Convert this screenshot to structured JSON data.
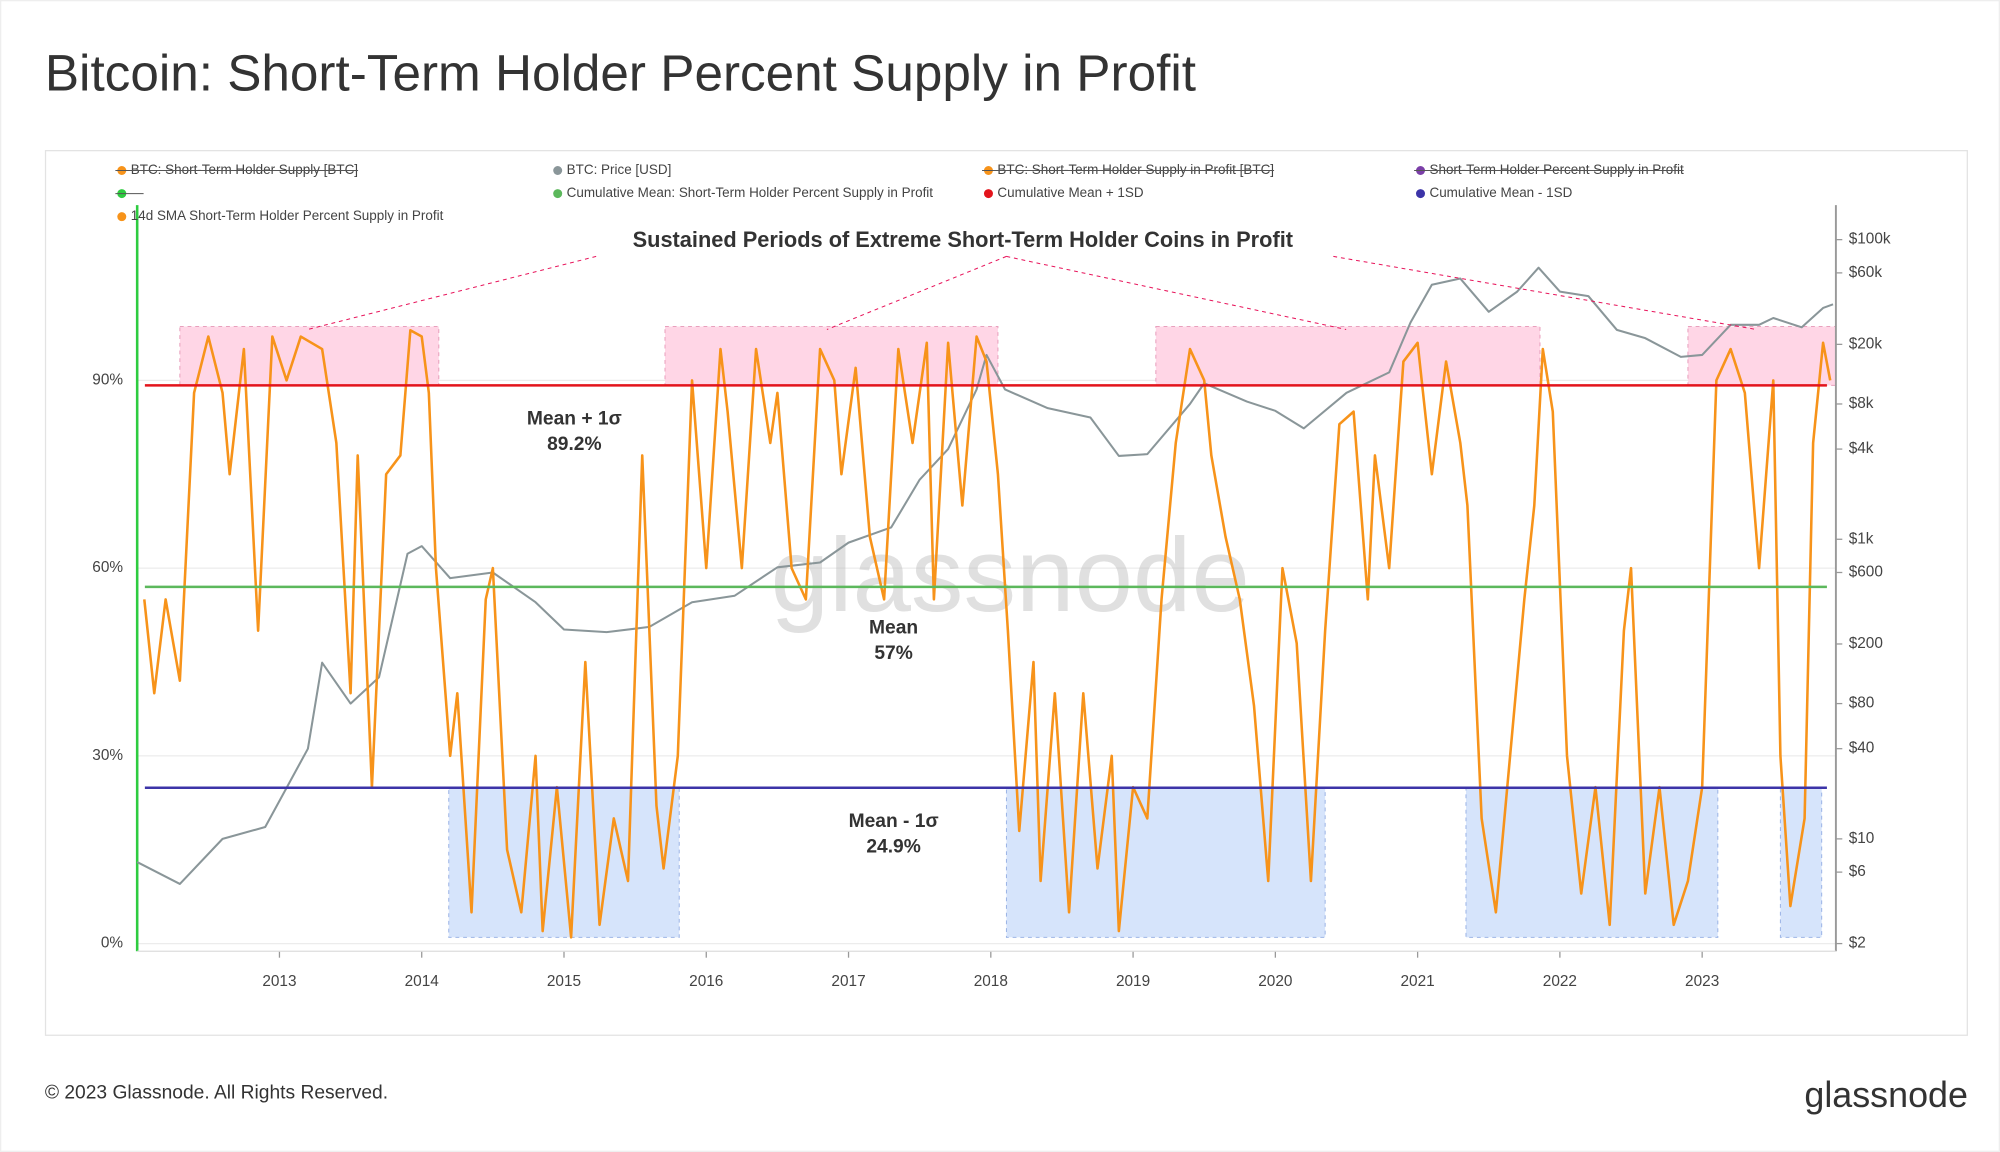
{
  "title": "Bitcoin: Short-Term Holder Percent Supply in Profit",
  "footer": "© 2023 Glassnode. All Rights Reserved.",
  "logo": "glassnode",
  "chart_data": {
    "type": "line",
    "watermark": "glassnode",
    "annotation": "Sustained Periods of Extreme Short-Term Holder Coins in Profit",
    "xlim": [
      2012.0,
      2023.94
    ],
    "xticks": [
      2013,
      2014,
      2015,
      2016,
      2017,
      2018,
      2019,
      2020,
      2021,
      2022,
      2023
    ],
    "ylim": [
      0,
      118
    ],
    "yticks": [
      {
        "value": 0,
        "label": "0%"
      },
      {
        "value": 30,
        "label": "30%"
      },
      {
        "value": 60,
        "label": "60%"
      },
      {
        "value": 90,
        "label": "90%"
      }
    ],
    "y2lim": [
      2,
      170000
    ],
    "y2scale": "log",
    "y2ticks": [
      {
        "value": 100000,
        "label": "$100k"
      },
      {
        "value": 60000,
        "label": "$60k"
      },
      {
        "value": 20000,
        "label": "$20k"
      },
      {
        "value": 8000,
        "label": "$8k"
      },
      {
        "value": 4000,
        "label": "$4k"
      },
      {
        "value": 1000,
        "label": "$1k"
      },
      {
        "value": 600,
        "label": "$600"
      },
      {
        "value": 200,
        "label": "$200"
      },
      {
        "value": 80,
        "label": "$80"
      },
      {
        "value": 40,
        "label": "$40"
      },
      {
        "value": 10,
        "label": "$10"
      },
      {
        "value": 6,
        "label": "$6"
      },
      {
        "value": 2,
        "label": "$2"
      }
    ],
    "grid": true,
    "hidden_series": [
      {
        "name": "BTC: Short-Term Holder Supply [BTC]",
        "color": "#f7931a"
      },
      {
        "name": "BTC: Short-Term Holder Supply in Profit [BTC]",
        "color": "#f7931a"
      },
      {
        "name": "Short-Term Holder Percent Supply in Profit",
        "color": "#7b3fa8"
      }
    ],
    "series": [
      {
        "name": "BTC: Price [USD]",
        "color": "#8a9699",
        "axis": "y2",
        "x": [
          2012.0,
          2012.3,
          2012.6,
          2012.9,
          2013.2,
          2013.3,
          2013.5,
          2013.7,
          2013.9,
          2014.0,
          2014.2,
          2014.5,
          2014.8,
          2015.0,
          2015.3,
          2015.6,
          2015.9,
          2016.2,
          2016.5,
          2016.8,
          2017.0,
          2017.3,
          2017.5,
          2017.7,
          2017.9,
          2017.97,
          2018.1,
          2018.4,
          2018.7,
          2018.9,
          2019.1,
          2019.4,
          2019.5,
          2019.8,
          2020.0,
          2020.2,
          2020.5,
          2020.8,
          2020.95,
          2021.1,
          2021.3,
          2021.5,
          2021.7,
          2021.85,
          2022.0,
          2022.2,
          2022.4,
          2022.6,
          2022.85,
          2023.0,
          2023.2,
          2023.4,
          2023.5,
          2023.7,
          2023.85,
          2023.92
        ],
        "values": [
          7,
          5,
          10,
          12,
          40,
          150,
          80,
          120,
          800,
          900,
          550,
          600,
          380,
          250,
          240,
          260,
          380,
          420,
          650,
          700,
          950,
          1200,
          2500,
          4000,
          10000,
          17000,
          10000,
          7500,
          6500,
          3600,
          3700,
          8000,
          11000,
          8300,
          7200,
          5500,
          9500,
          13000,
          28000,
          50000,
          55000,
          33000,
          45000,
          65000,
          45000,
          42000,
          25000,
          22000,
          16500,
          17000,
          27000,
          27000,
          30000,
          26000,
          35000,
          37000
        ]
      },
      {
        "name": "14d SMA Short-Term Holder Percent Supply in Profit",
        "color": "#f7931a",
        "axis": "y",
        "x": [
          2012.05,
          2012.12,
          2012.2,
          2012.3,
          2012.4,
          2012.5,
          2012.6,
          2012.65,
          2012.75,
          2012.85,
          2012.95,
          2013.05,
          2013.15,
          2013.3,
          2013.4,
          2013.5,
          2013.55,
          2013.65,
          2013.75,
          2013.85,
          2013.92,
          2014.0,
          2014.05,
          2014.1,
          2014.2,
          2014.25,
          2014.35,
          2014.45,
          2014.5,
          2014.6,
          2014.7,
          2014.8,
          2014.85,
          2014.95,
          2015.05,
          2015.15,
          2015.25,
          2015.35,
          2015.45,
          2015.55,
          2015.65,
          2015.7,
          2015.8,
          2015.9,
          2016.0,
          2016.1,
          2016.15,
          2016.25,
          2016.35,
          2016.45,
          2016.5,
          2016.6,
          2016.7,
          2016.8,
          2016.9,
          2016.95,
          2017.05,
          2017.15,
          2017.25,
          2017.35,
          2017.45,
          2017.55,
          2017.6,
          2017.7,
          2017.8,
          2017.9,
          2017.97,
          2018.05,
          2018.12,
          2018.2,
          2018.3,
          2018.35,
          2018.45,
          2018.55,
          2018.65,
          2018.75,
          2018.85,
          2018.9,
          2019.0,
          2019.1,
          2019.2,
          2019.3,
          2019.4,
          2019.5,
          2019.55,
          2019.65,
          2019.75,
          2019.85,
          2019.95,
          2020.05,
          2020.15,
          2020.25,
          2020.35,
          2020.45,
          2020.55,
          2020.65,
          2020.7,
          2020.8,
          2020.9,
          2021.0,
          2021.1,
          2021.2,
          2021.3,
          2021.35,
          2021.45,
          2021.55,
          2021.65,
          2021.75,
          2021.82,
          2021.88,
          2021.95,
          2022.05,
          2022.15,
          2022.25,
          2022.35,
          2022.45,
          2022.5,
          2022.6,
          2022.7,
          2022.8,
          2022.9,
          2023.0,
          2023.1,
          2023.2,
          2023.3,
          2023.4,
          2023.5,
          2023.55,
          2023.62,
          2023.72,
          2023.78,
          2023.85,
          2023.9
        ],
        "values": [
          55,
          40,
          55,
          42,
          88,
          97,
          88,
          75,
          95,
          50,
          97,
          90,
          97,
          95,
          80,
          40,
          78,
          25,
          75,
          78,
          98,
          97,
          88,
          60,
          30,
          40,
          5,
          55,
          60,
          15,
          5,
          30,
          2,
          25,
          1,
          45,
          3,
          20,
          10,
          78,
          22,
          12,
          30,
          90,
          60,
          95,
          85,
          60,
          95,
          80,
          88,
          60,
          55,
          95,
          90,
          75,
          92,
          65,
          55,
          95,
          80,
          96,
          55,
          96,
          70,
          97,
          93,
          75,
          50,
          18,
          45,
          10,
          40,
          5,
          40,
          12,
          30,
          2,
          25,
          20,
          55,
          80,
          95,
          90,
          78,
          65,
          55,
          38,
          10,
          60,
          48,
          10,
          50,
          83,
          85,
          55,
          78,
          60,
          93,
          96,
          75,
          93,
          80,
          70,
          20,
          5,
          30,
          55,
          70,
          95,
          85,
          30,
          8,
          25,
          3,
          50,
          60,
          8,
          25,
          3,
          10,
          25,
          90,
          95,
          88,
          60,
          90,
          30,
          6,
          20,
          80,
          96,
          90
        ]
      }
    ],
    "lines": [
      {
        "name": "Cumulative Mean + 1SD",
        "label": "Mean + 1σ",
        "value": 89.2,
        "value_label": "89.2%",
        "color": "#e3141c",
        "label_color": "#e8165c"
      },
      {
        "name": "Cumulative Mean: Short-Term Holder Percent Supply in Profit",
        "label": "Mean",
        "value": 57,
        "value_label": "57%",
        "color": "#5cb85c",
        "label_color": "#1aa068"
      },
      {
        "name": "Cumulative Mean - 1SD",
        "label": "Mean - 1σ",
        "value": 24.9,
        "value_label": "24.9%",
        "color": "#3c34a8",
        "label_color": "#1a56e0"
      }
    ],
    "regions": [
      {
        "x": [
          2012.3,
          2014.12
        ],
        "y": [
          89.2,
          98.6
        ],
        "color": "#ffd6e6"
      },
      {
        "x": [
          2015.71,
          2018.05
        ],
        "y": [
          89.2,
          98.6
        ],
        "color": "#ffd6e6"
      },
      {
        "x": [
          2019.16,
          2021.86
        ],
        "y": [
          89.2,
          98.6
        ],
        "color": "#ffd6e6"
      },
      {
        "x": [
          2022.9,
          2023.94
        ],
        "y": [
          89.2,
          98.6
        ],
        "color": "#ffd6e6"
      },
      {
        "x": [
          2014.19,
          2015.81
        ],
        "y": [
          1,
          24.9
        ],
        "color": "#d6e4fb"
      },
      {
        "x": [
          2018.11,
          2020.35
        ],
        "y": [
          1,
          24.9
        ],
        "color": "#d6e4fb"
      },
      {
        "x": [
          2021.34,
          2023.11
        ],
        "y": [
          1,
          24.9
        ],
        "color": "#d6e4fb"
      },
      {
        "x": [
          2023.55,
          2023.84
        ],
        "y": [
          1,
          24.9
        ],
        "color": "#d6e4fb"
      }
    ]
  }
}
